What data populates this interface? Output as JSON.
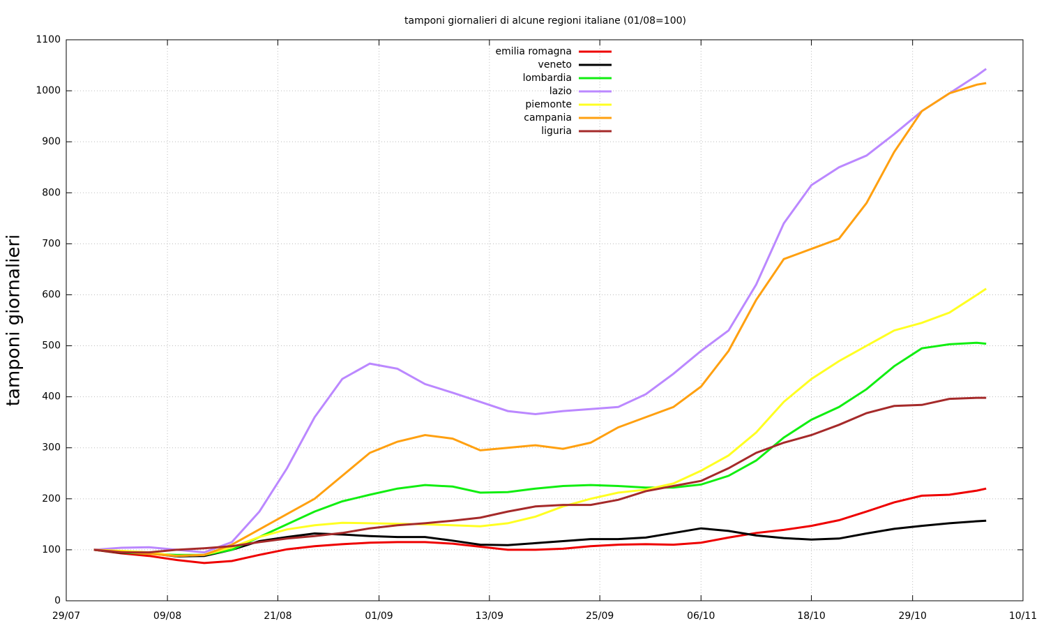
{
  "chart_data": {
    "type": "line",
    "title": "tamponi giornalieri di alcune regioni italiane (01/08=100)",
    "y_label": "tamponi giornalieri",
    "x": [
      "01/08",
      "04/08",
      "07/08",
      "10/08",
      "13/08",
      "16/08",
      "19/08",
      "22/08",
      "25/08",
      "28/08",
      "31/08",
      "03/09",
      "06/09",
      "09/09",
      "12/09",
      "15/09",
      "18/09",
      "21/09",
      "24/09",
      "27/09",
      "30/09",
      "03/10",
      "06/10",
      "09/10",
      "12/10",
      "15/10",
      "18/10",
      "21/10",
      "24/10",
      "27/10",
      "30/10",
      "02/11",
      "05/11",
      "06/11"
    ],
    "series": [
      {
        "name": "emilia romagna",
        "color": "#ee0000",
        "values": [
          100,
          93,
          88,
          80,
          74,
          78,
          90,
          101,
          107,
          111,
          114,
          115,
          115,
          112,
          106,
          100,
          100,
          102,
          107,
          110,
          111,
          110,
          114,
          124,
          133,
          139,
          147,
          158,
          175,
          193,
          206,
          208,
          216,
          220
        ]
      },
      {
        "name": "veneto",
        "color": "#000000",
        "values": [
          100,
          94,
          93,
          87,
          88,
          100,
          117,
          125,
          132,
          130,
          127,
          125,
          125,
          118,
          110,
          109,
          113,
          117,
          121,
          121,
          124,
          133,
          142,
          137,
          128,
          123,
          120,
          122,
          132,
          141,
          147,
          152,
          156,
          157
        ]
      },
      {
        "name": "lombardia",
        "color": "#11ee11",
        "values": [
          100,
          95,
          92,
          90,
          90,
          100,
          125,
          150,
          175,
          195,
          208,
          220,
          227,
          224,
          212,
          213,
          220,
          225,
          227,
          225,
          222,
          222,
          228,
          245,
          275,
          320,
          355,
          380,
          415,
          460,
          495,
          503,
          506,
          504
        ]
      },
      {
        "name": "lazio",
        "color": "#bb88ff",
        "values": [
          100,
          104,
          105,
          100,
          95,
          115,
          175,
          260,
          360,
          435,
          465,
          455,
          425,
          408,
          390,
          372,
          366,
          372,
          376,
          380,
          405,
          445,
          490,
          530,
          620,
          740,
          815,
          850,
          873,
          915,
          960,
          995,
          1030,
          1043
        ]
      },
      {
        "name": "piemonte",
        "color": "#ffff22",
        "values": [
          100,
          98,
          95,
          88,
          90,
          105,
          125,
          140,
          148,
          153,
          152,
          151,
          150,
          148,
          146,
          152,
          165,
          185,
          200,
          212,
          218,
          230,
          255,
          285,
          330,
          390,
          435,
          470,
          500,
          530,
          545,
          565,
          600,
          612
        ]
      },
      {
        "name": "campania",
        "color": "#ffa010",
        "values": [
          100,
          96,
          92,
          88,
          90,
          110,
          140,
          170,
          200,
          245,
          290,
          312,
          325,
          318,
          295,
          300,
          305,
          298,
          310,
          340,
          360,
          380,
          420,
          490,
          590,
          670,
          690,
          710,
          780,
          880,
          960,
          995,
          1012,
          1015
        ]
      },
      {
        "name": "liguria",
        "color": "#a52a2a",
        "values": [
          100,
          95,
          95,
          100,
          103,
          107,
          115,
          122,
          127,
          133,
          142,
          148,
          152,
          157,
          163,
          175,
          185,
          188,
          188,
          198,
          215,
          225,
          235,
          260,
          290,
          310,
          325,
          345,
          368,
          382,
          384,
          396,
          398,
          398
        ]
      }
    ],
    "xlim": [
      "29/07",
      "10/11"
    ],
    "xticks": [
      "29/07",
      "09/08",
      "21/08",
      "01/09",
      "13/09",
      "25/09",
      "06/10",
      "18/10",
      "29/10",
      "10/11"
    ],
    "ylim": [
      0,
      1100
    ],
    "yticks": [
      0,
      100,
      200,
      300,
      400,
      500,
      600,
      700,
      800,
      900,
      1000,
      1100
    ],
    "grid": true,
    "legend": "top"
  }
}
